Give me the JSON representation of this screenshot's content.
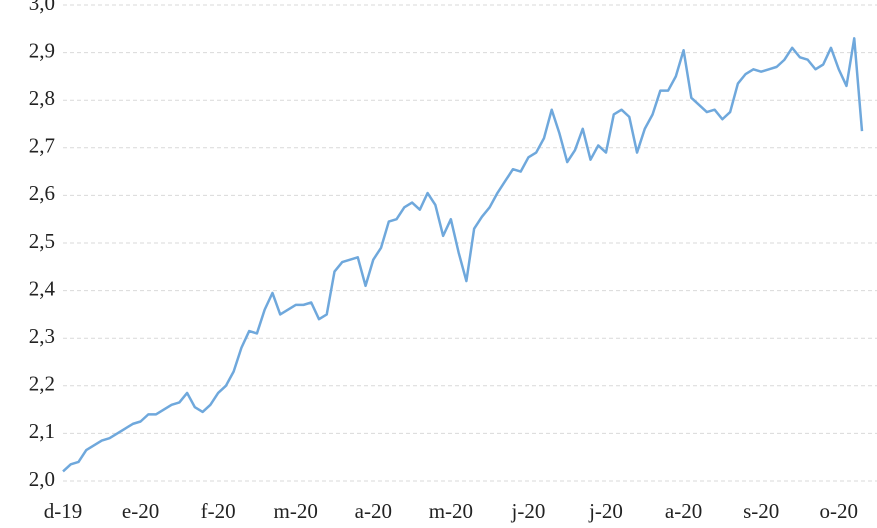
{
  "chart_data": {
    "type": "line",
    "categories": [
      "d-19",
      null,
      null,
      null,
      null,
      null,
      null,
      null,
      null,
      null,
      "e-20",
      null,
      null,
      null,
      null,
      null,
      null,
      null,
      null,
      null,
      "f-20",
      null,
      null,
      null,
      null,
      null,
      null,
      null,
      null,
      null,
      "m-20",
      null,
      null,
      null,
      null,
      null,
      null,
      null,
      null,
      null,
      "a-20",
      null,
      null,
      null,
      null,
      null,
      null,
      null,
      null,
      null,
      "m-20",
      null,
      null,
      null,
      null,
      null,
      null,
      null,
      null,
      null,
      "j-20",
      null,
      null,
      null,
      null,
      null,
      null,
      null,
      null,
      null,
      "j-20",
      null,
      null,
      null,
      null,
      null,
      null,
      null,
      null,
      null,
      "a-20",
      null,
      null,
      null,
      null,
      null,
      null,
      null,
      null,
      null,
      "s-20",
      null,
      null,
      null,
      null,
      null,
      null,
      null,
      null,
      null,
      "o-20",
      null,
      null,
      null
    ],
    "series": [
      {
        "color": "#6fa8dc",
        "values": [
          2.02,
          2.035,
          2.04,
          2.065,
          2.075,
          2.085,
          2.09,
          2.1,
          2.11,
          2.12,
          2.125,
          2.14,
          2.14,
          2.15,
          2.16,
          2.165,
          2.185,
          2.155,
          2.145,
          2.16,
          2.185,
          2.2,
          2.23,
          2.28,
          2.315,
          2.31,
          2.36,
          2.395,
          2.35,
          2.36,
          2.37,
          2.37,
          2.375,
          2.34,
          2.35,
          2.44,
          2.46,
          2.465,
          2.47,
          2.41,
          2.465,
          2.49,
          2.545,
          2.55,
          2.575,
          2.585,
          2.57,
          2.605,
          2.58,
          2.515,
          2.55,
          2.48,
          2.42,
          2.53,
          2.555,
          2.575,
          2.605,
          2.63,
          2.655,
          2.65,
          2.68,
          2.69,
          2.72,
          2.78,
          2.73,
          2.67,
          2.695,
          2.74,
          2.675,
          2.705,
          2.69,
          2.77,
          2.78,
          2.765,
          2.69,
          2.74,
          2.77,
          2.82,
          2.82,
          2.85,
          2.905,
          2.805,
          2.79,
          2.775,
          2.78,
          2.76,
          2.775,
          2.835,
          2.855,
          2.865,
          2.86,
          2.865,
          2.87,
          2.885,
          2.91,
          2.89,
          2.885,
          2.865,
          2.875,
          2.91,
          2.865,
          2.83,
          2.93,
          2.735
        ]
      }
    ],
    "ylim": [
      2.0,
      3.0
    ],
    "yticks": [
      {
        "value": 2.0,
        "label": "2,0"
      },
      {
        "value": 2.1,
        "label": "2,1"
      },
      {
        "value": 2.2,
        "label": "2,2"
      },
      {
        "value": 2.3,
        "label": "2,3"
      },
      {
        "value": 2.4,
        "label": "2,4"
      },
      {
        "value": 2.5,
        "label": "2,5"
      },
      {
        "value": 2.6,
        "label": "2,6"
      },
      {
        "value": 2.7,
        "label": "2,7"
      },
      {
        "value": 2.8,
        "label": "2,8"
      },
      {
        "value": 2.9,
        "label": "2,9"
      },
      {
        "value": 3.0,
        "label": "3,0"
      }
    ],
    "grid": true
  }
}
